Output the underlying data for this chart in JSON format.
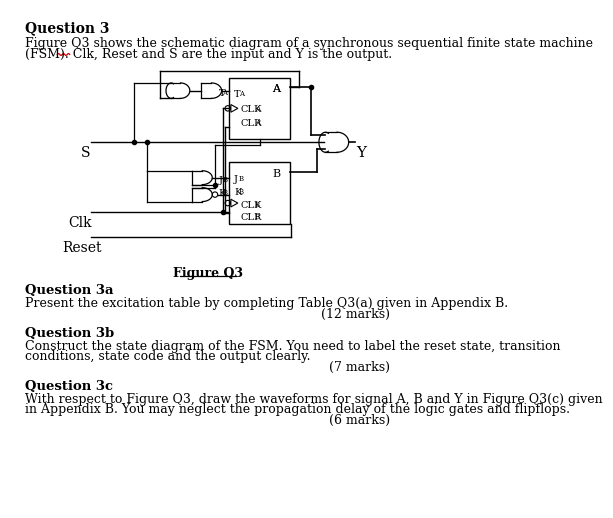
{
  "title": "Question 3",
  "figure_label": "Figure Q3",
  "q3a_title": "Question 3a",
  "q3a_text": "Present the excitation table by completing Table Q3(a) given in Appendix B.",
  "q3a_marks": "(12 marks)",
  "q3b_title": "Question 3b",
  "q3b_line1": "Construct the state diagram of the FSM. You need to label the reset state, transition",
  "q3b_line2": "conditions, state code and the output clearly.",
  "q3b_marks": "(7 marks)",
  "q3c_title": "Question 3c",
  "q3c_line1": "With respect to Figure Q3, draw the waveforms for signal A, B and Y in Figure Q3(c) given",
  "q3c_line2": "in Appendix B. You may neglect the propagation delay of the logic gates and flipflops.",
  "q3c_marks": "(6 marks)",
  "intro_line1": "Figure Q3 shows the schematic diagram of a synchronous sequential finite state machine",
  "intro_line2": "(FSM). Clk, Reset and S are the input and Y is the output.",
  "bg_color": "#ffffff",
  "text_color": "#000000",
  "clk_underline_color": "#cc0000"
}
